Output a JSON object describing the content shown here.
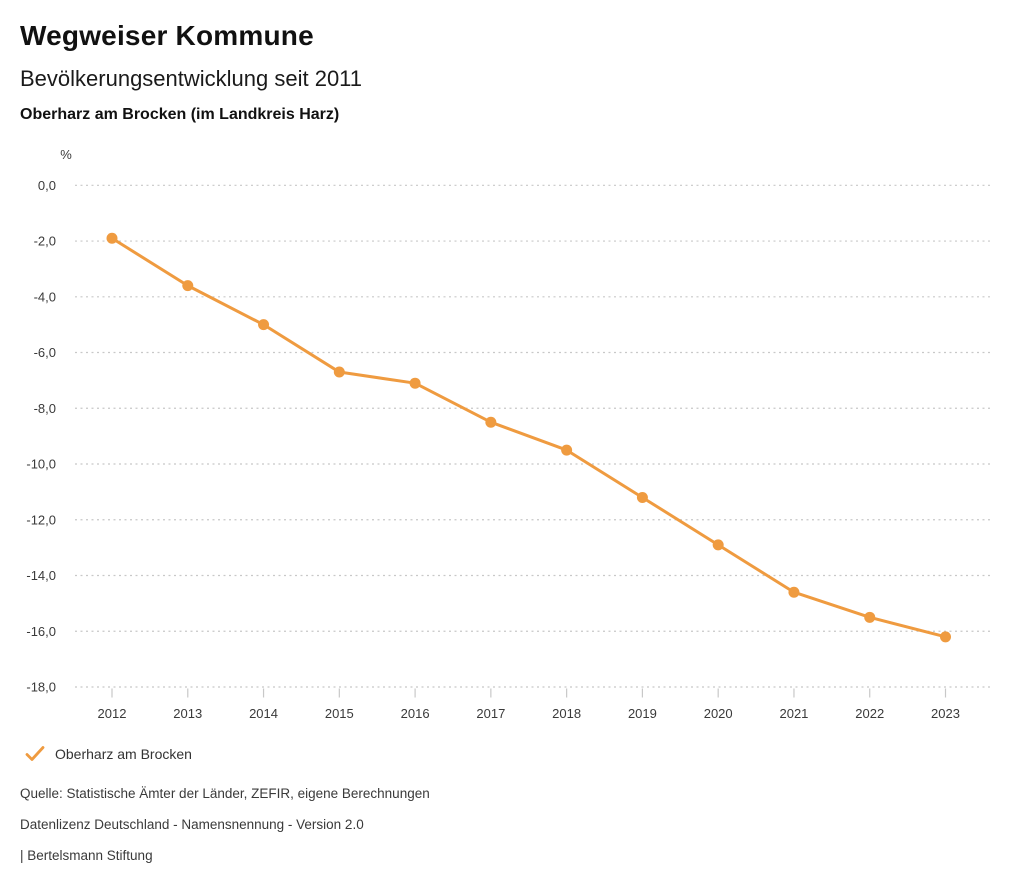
{
  "header": {
    "title": "Wegweiser Kommune",
    "subtitle": "Bevölkerungsentwicklung seit 2011",
    "region": "Oberharz am Brocken (im Landkreis Harz)"
  },
  "chart_data": {
    "type": "line",
    "title": "Bevölkerungsentwicklung seit 2011",
    "unit_label": "%",
    "x": [
      "2012",
      "2013",
      "2014",
      "2015",
      "2016",
      "2017",
      "2018",
      "2019",
      "2020",
      "2021",
      "2022",
      "2023"
    ],
    "series": [
      {
        "name": "Oberharz am Brocken",
        "values": [
          -1.9,
          -3.6,
          -5.0,
          -6.7,
          -7.1,
          -8.5,
          -9.5,
          -11.2,
          -12.9,
          -14.6,
          -15.5,
          -16.2
        ]
      }
    ],
    "ylim": [
      -18,
      0
    ],
    "ytick_step": 2,
    "ytick_labels": [
      "0,0",
      "-2,0",
      "-4,0",
      "-6,0",
      "-8,0",
      "-10,0",
      "-12,0",
      "-14,0",
      "-16,0",
      "-18,0"
    ],
    "grid": "horizontal-dotted",
    "legend_position": "bottom-left",
    "colors": {
      "series": "#EF9B40",
      "grid": "#c8c8c8",
      "tick": "#c8c8c8",
      "axis_text": "#3a3a3a"
    }
  },
  "legend": {
    "marker": "check-icon",
    "label": "Oberharz am Brocken"
  },
  "footer": {
    "source": "Quelle: Statistische Ämter der Länder, ZEFIR, eigene Berechnungen",
    "license": "Datenlizenz Deutschland - Namensnennung - Version 2.0",
    "attribution": "| Bertelsmann Stiftung"
  }
}
